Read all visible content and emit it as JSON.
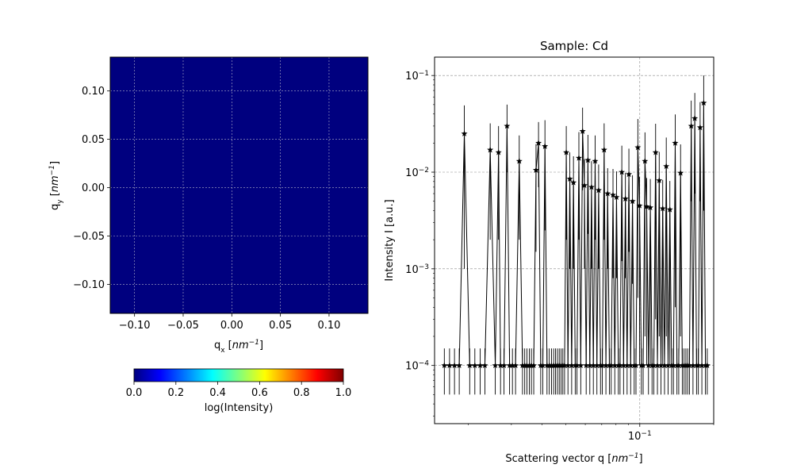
{
  "chart_data": [
    {
      "type": "heatmap",
      "title": "",
      "xlabel": "q",
      "xlabel_sub": "x",
      "xlabel_unit": "nm",
      "xlabel_unit_exp": "−1",
      "ylabel": "q",
      "ylabel_sub": "y",
      "ylabel_unit": "nm",
      "ylabel_unit_exp": "−1",
      "xlim": [
        -0.125,
        0.14
      ],
      "ylim": [
        -0.13,
        0.135
      ],
      "xticks": [
        -0.1,
        -0.05,
        0.0,
        0.05,
        0.1
      ],
      "xtick_labels": [
        "−0.10",
        "−0.05",
        "0.00",
        "0.05",
        "0.10"
      ],
      "yticks": [
        0.1,
        0.05,
        0.0,
        -0.05,
        -0.1
      ],
      "ytick_labels": [
        "0.10",
        "0.05",
        "0.00",
        "−0.05",
        "−0.10"
      ],
      "grid": true,
      "fill_value": 0.0,
      "fill_color": "#00007f",
      "colorbar": {
        "label": "log(Intensity)",
        "range": [
          0.0,
          1.0
        ],
        "ticks": [
          0.0,
          0.2,
          0.4,
          0.6,
          0.8,
          1.0
        ],
        "tick_labels": [
          "0.0",
          "0.2",
          "0.4",
          "0.6",
          "0.8",
          "1.0"
        ],
        "colormap": "jet",
        "colormap_stops": [
          "#00007f",
          "#0000ff",
          "#007fff",
          "#00ffff",
          "#7fff7f",
          "#ffff00",
          "#ff7f00",
          "#ff0000",
          "#7f0000"
        ],
        "orientation": "horizontal"
      }
    },
    {
      "type": "line",
      "title": "Sample: Cd",
      "xlabel": "Scattering vector q",
      "xlabel_unit": "nm",
      "xlabel_unit_exp": "−1",
      "ylabel": "Intensity I [a.u.]",
      "xscale": "log",
      "yscale": "log",
      "xlim": [
        0.0146,
        0.2
      ],
      "ylim": [
        2.5e-05,
        0.155
      ],
      "xticks": [
        0.1
      ],
      "xtick_labels": [
        {
          "base": "10",
          "exp": "−1"
        }
      ],
      "yticks": [
        0.1,
        0.01,
        0.001,
        0.0001
      ],
      "ytick_labels": [
        {
          "base": "10",
          "exp": "−1"
        },
        {
          "base": "10",
          "exp": "−2"
        },
        {
          "base": "10",
          "exp": "−3"
        },
        {
          "base": "10",
          "exp": "−4"
        }
      ],
      "grid": true,
      "line_color": "#000000",
      "marker": "star",
      "x": [
        0.016,
        0.0168,
        0.0176,
        0.0184,
        0.0193,
        0.0203,
        0.0213,
        0.0224,
        0.0234,
        0.0246,
        0.0258,
        0.0266,
        0.0271,
        0.028,
        0.0288,
        0.0295,
        0.0303,
        0.0312,
        0.0323,
        0.0333,
        0.034,
        0.0347,
        0.0355,
        0.0362,
        0.037,
        0.0378,
        0.0387,
        0.0395,
        0.0403,
        0.0411,
        0.0419,
        0.0428,
        0.0437,
        0.0446,
        0.0454,
        0.0462,
        0.047,
        0.0478,
        0.0486,
        0.0494,
        0.0502,
        0.051,
        0.0519,
        0.0528,
        0.0537,
        0.0546,
        0.0555,
        0.0565,
        0.0575,
        0.0585,
        0.0595,
        0.0605,
        0.0615,
        0.0626,
        0.0636,
        0.0647,
        0.0658,
        0.0669,
        0.068,
        0.0692,
        0.0704,
        0.0716,
        0.0728,
        0.074,
        0.0752,
        0.0765,
        0.0778,
        0.0791,
        0.0804,
        0.0818,
        0.0831,
        0.0845,
        0.0859,
        0.0874,
        0.0888,
        0.0903,
        0.0918,
        0.0934,
        0.0949,
        0.0965,
        0.0982,
        0.0998,
        0.1015,
        0.1032,
        0.105,
        0.1067,
        0.1085,
        0.1104,
        0.1122,
        0.1141,
        0.116,
        0.118,
        0.12,
        0.122,
        0.124,
        0.1261,
        0.1282,
        0.1304,
        0.1326,
        0.1348,
        0.1371,
        0.1394,
        0.1417,
        0.1441,
        0.1466,
        0.149,
        0.1515,
        0.1541,
        0.1567,
        0.1593,
        0.162,
        0.1647,
        0.1675,
        0.1703,
        0.1732,
        0.1761,
        0.179,
        0.1821,
        0.1851,
        0.1883
      ],
      "y": [
        0.0001,
        0.0001,
        0.0001,
        0.0001,
        0.025,
        0.0001,
        0.0001,
        0.0001,
        0.0001,
        0.017,
        0.0001,
        0.016,
        0.0001,
        0.0001,
        0.03,
        0.0001,
        0.0001,
        0.0001,
        0.013,
        0.0001,
        0.0001,
        0.0001,
        0.0001,
        0.0001,
        0.0001,
        0.0105,
        0.02,
        0.0001,
        0.0001,
        0.0185,
        0.0001,
        0.0001,
        0.0001,
        0.0001,
        0.0001,
        0.0001,
        0.0001,
        0.0001,
        0.0001,
        0.0001,
        0.016,
        0.0001,
        0.0085,
        0.0001,
        0.0078,
        0.0001,
        0.0001,
        0.014,
        0.0001,
        0.0265,
        0.0073,
        0.0001,
        0.0133,
        0.0001,
        0.007,
        0.0001,
        0.013,
        0.0001,
        0.0065,
        0.0001,
        0.0001,
        0.017,
        0.0001,
        0.006,
        0.0001,
        0.0001,
        0.0058,
        0.0001,
        0.0055,
        0.0001,
        0.0001,
        0.01,
        0.0001,
        0.0053,
        0.0001,
        0.0095,
        0.0001,
        0.005,
        0.0001,
        0.0001,
        0.018,
        0.0045,
        0.0001,
        0.0001,
        0.013,
        0.0044,
        0.0001,
        0.0043,
        0.0001,
        0.0001,
        0.016,
        0.0001,
        0.0082,
        0.0001,
        0.0042,
        0.0001,
        0.0115,
        0.0001,
        0.0041,
        0.0001,
        0.0001,
        0.02,
        0.0001,
        0.0001,
        0.0098,
        0.0001,
        0.0001,
        0.0001,
        0.0001,
        0.0001,
        0.03,
        0.0001,
        0.036,
        0.0001,
        0.0001,
        0.029,
        0.0001,
        0.052,
        0.0001,
        0.0001
      ],
      "error": [
        5e-05,
        5e-05,
        5e-05,
        5e-05,
        0.024,
        5e-05,
        5e-05,
        5e-05,
        5e-05,
        0.015,
        5e-05,
        0.014,
        5e-05,
        5e-05,
        0.02,
        5e-05,
        5e-05,
        5e-05,
        0.011,
        5e-05,
        5e-05,
        5e-05,
        5e-05,
        5e-05,
        5e-05,
        0.009,
        0.013,
        5e-05,
        5e-05,
        0.016,
        5e-05,
        5e-05,
        5e-05,
        5e-05,
        5e-05,
        5e-05,
        5e-05,
        5e-05,
        5e-05,
        5e-05,
        0.014,
        5e-05,
        0.0075,
        5e-05,
        0.0068,
        5e-05,
        5e-05,
        0.012,
        5e-05,
        0.02,
        0.0063,
        5e-05,
        0.011,
        5e-05,
        0.006,
        5e-05,
        0.011,
        5e-05,
        0.0055,
        5e-05,
        5e-05,
        0.015,
        5e-05,
        0.005,
        5e-05,
        5e-05,
        0.005,
        5e-05,
        0.0047,
        5e-05,
        5e-05,
        0.0088,
        5e-05,
        0.0045,
        5e-05,
        0.008,
        5e-05,
        0.0043,
        5e-05,
        5e-05,
        0.0175,
        0.0044,
        5e-05,
        5e-05,
        0.0128,
        0.0043,
        5e-05,
        0.0042,
        5e-05,
        5e-05,
        0.0157,
        5e-05,
        0.008,
        5e-05,
        0.0041,
        5e-05,
        0.0113,
        5e-05,
        0.004,
        5e-05,
        5e-05,
        0.0196,
        5e-05,
        5e-05,
        0.0096,
        5e-05,
        5e-05,
        5e-05,
        5e-05,
        5e-05,
        0.025,
        5e-05,
        0.03,
        5e-05,
        5e-05,
        0.024,
        5e-05,
        0.048,
        5e-05,
        5e-05
      ]
    }
  ]
}
